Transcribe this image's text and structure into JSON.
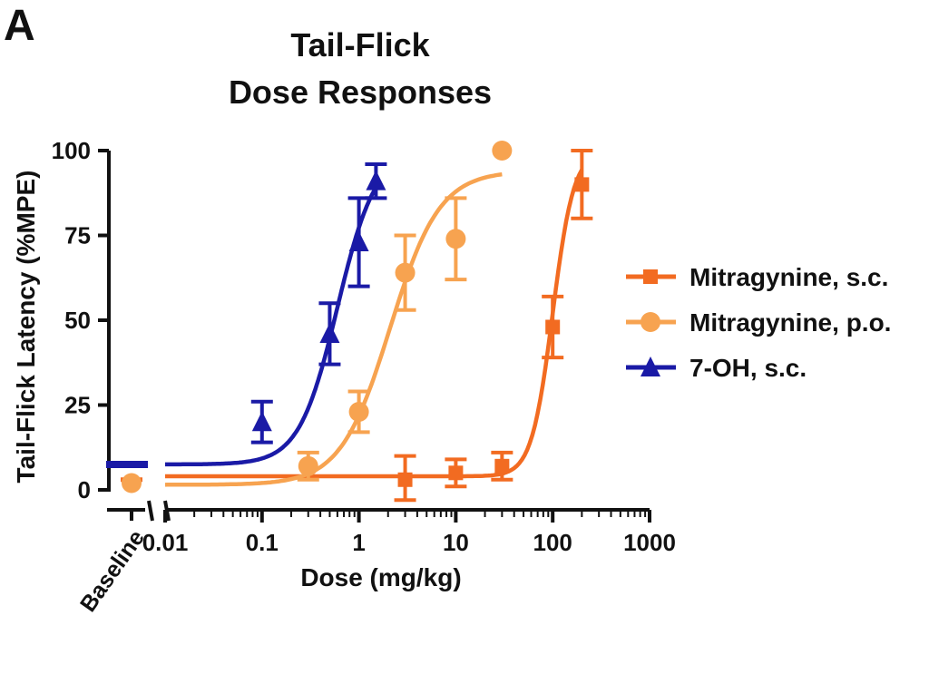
{
  "panel_label": "A",
  "chart_data": {
    "type": "scatter",
    "title_lines": [
      "Tail-Flick",
      "Dose Responses"
    ],
    "xlabel": "Dose (mg/kg)",
    "ylabel": "Tail-Flick Latency (%MPE)",
    "x_scale": "log",
    "xlim": [
      0.01,
      1000
    ],
    "ylim": [
      0,
      100
    ],
    "x_ticks": [
      0.01,
      0.1,
      1,
      10,
      100,
      1000
    ],
    "x_tick_labels": [
      "0.01",
      "0.1",
      "1",
      "10",
      "100",
      "1000"
    ],
    "y_ticks": [
      0,
      25,
      50,
      75,
      100
    ],
    "y_tick_labels": [
      "0",
      "25",
      "50",
      "75",
      "100"
    ],
    "baseline_label": "Baseline",
    "legend_position": "right",
    "series": [
      {
        "name": "Mitragynine, s.c.",
        "color": "#f26b21",
        "marker": "square",
        "baseline": {
          "y": 3,
          "err": 1
        },
        "x": [
          3,
          10,
          30,
          100,
          200
        ],
        "y": [
          3,
          5,
          7,
          48,
          90
        ],
        "err": [
          7,
          4,
          4,
          9,
          10
        ],
        "fit": {
          "bottom": 4,
          "top": 100,
          "ec50": 100,
          "hill": 4
        }
      },
      {
        "name": "Mitragynine, p.o.",
        "color": "#f7a350",
        "marker": "circle",
        "baseline": {
          "y": 2,
          "err": 1
        },
        "x": [
          0.3,
          1,
          3,
          10,
          30
        ],
        "y": [
          7,
          23,
          64,
          74,
          100
        ],
        "err": [
          4,
          6,
          11,
          12,
          0
        ],
        "fit": {
          "bottom": 1.5,
          "top": 94,
          "ec50": 2.1,
          "hill": 1.7
        }
      },
      {
        "name": "7-OH, s.c.",
        "color": "#1a1aa6",
        "marker": "triangle",
        "baseline": {
          "y": 7.5,
          "err": 1
        },
        "x": [
          0.1,
          0.5,
          1,
          1.5
        ],
        "y": [
          20,
          46,
          73,
          91
        ],
        "err": [
          6,
          9,
          13,
          5
        ],
        "fit": {
          "bottom": 7.5,
          "top": 100,
          "ec50": 0.6,
          "hill": 2.2,
          "x_end": 1.5
        }
      }
    ]
  }
}
